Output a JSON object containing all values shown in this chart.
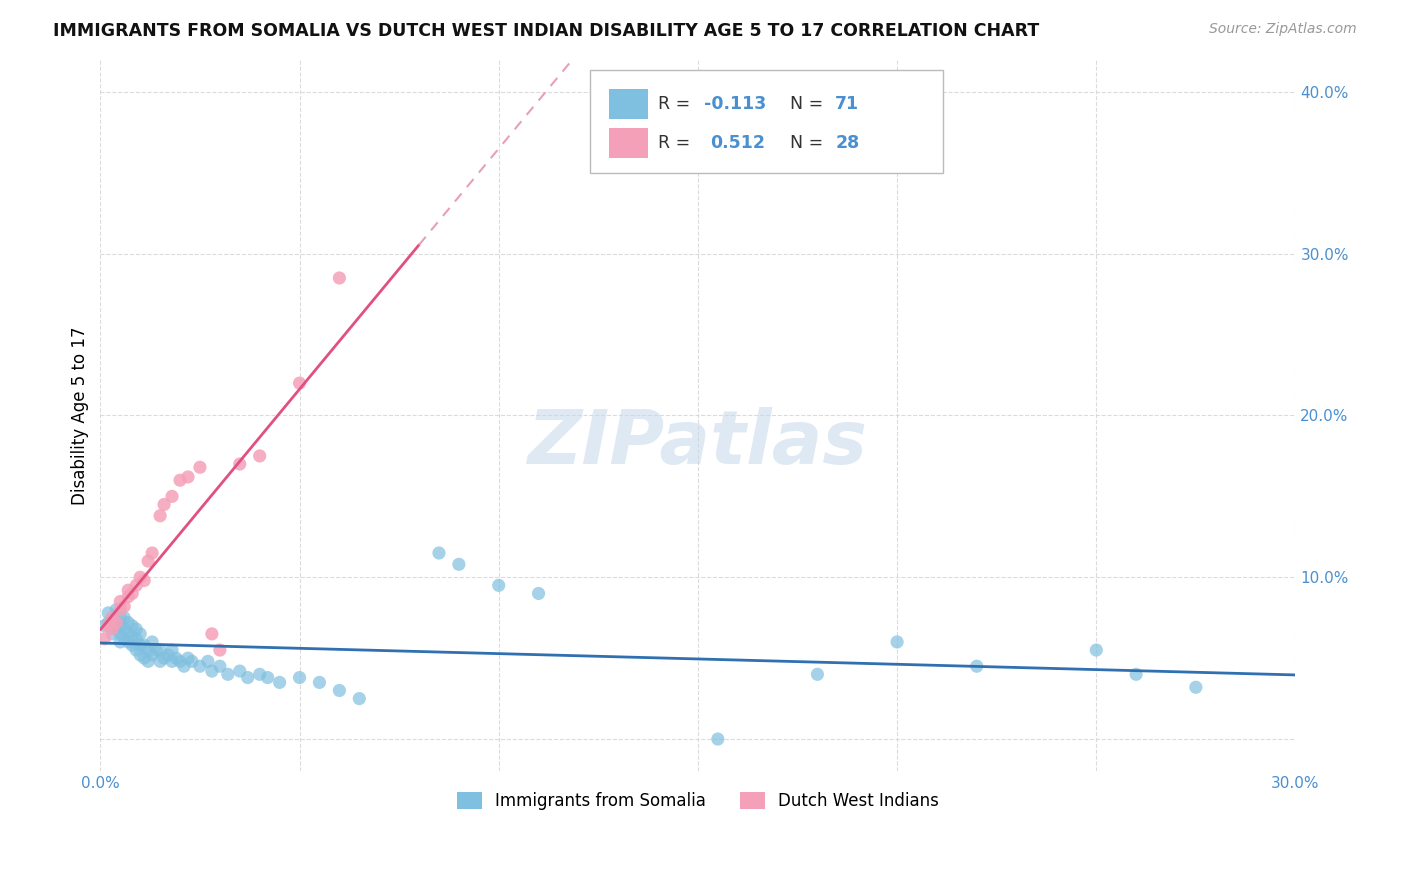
{
  "title": "IMMIGRANTS FROM SOMALIA VS DUTCH WEST INDIAN DISABILITY AGE 5 TO 17 CORRELATION CHART",
  "source": "Source: ZipAtlas.com",
  "ylabel": "Disability Age 5 to 17",
  "xlim": [
    0.0,
    0.3
  ],
  "ylim": [
    -0.02,
    0.42
  ],
  "blue_color": "#7fbfdf",
  "pink_color": "#f4a0b8",
  "trend_blue": "#3070b0",
  "trend_pink_solid": "#e05080",
  "trend_pink_dashed": "#e8a0b8",
  "background": "#ffffff",
  "grid_color": "#d8d8d8",
  "somalia_x": [
    0.001,
    0.002,
    0.002,
    0.003,
    0.003,
    0.003,
    0.004,
    0.004,
    0.004,
    0.005,
    0.005,
    0.005,
    0.005,
    0.006,
    0.006,
    0.006,
    0.007,
    0.007,
    0.007,
    0.008,
    0.008,
    0.008,
    0.009,
    0.009,
    0.009,
    0.01,
    0.01,
    0.01,
    0.011,
    0.011,
    0.012,
    0.012,
    0.013,
    0.013,
    0.014,
    0.015,
    0.015,
    0.016,
    0.017,
    0.018,
    0.018,
    0.019,
    0.02,
    0.021,
    0.022,
    0.023,
    0.025,
    0.027,
    0.028,
    0.03,
    0.032,
    0.035,
    0.037,
    0.04,
    0.042,
    0.045,
    0.05,
    0.055,
    0.06,
    0.065,
    0.085,
    0.09,
    0.1,
    0.11,
    0.155,
    0.18,
    0.2,
    0.22,
    0.25,
    0.26,
    0.275
  ],
  "somalia_y": [
    0.07,
    0.072,
    0.078,
    0.065,
    0.07,
    0.075,
    0.068,
    0.072,
    0.08,
    0.06,
    0.065,
    0.07,
    0.075,
    0.062,
    0.068,
    0.075,
    0.06,
    0.065,
    0.072,
    0.058,
    0.063,
    0.07,
    0.055,
    0.062,
    0.068,
    0.052,
    0.058,
    0.065,
    0.05,
    0.058,
    0.048,
    0.055,
    0.052,
    0.06,
    0.055,
    0.048,
    0.055,
    0.05,
    0.052,
    0.048,
    0.055,
    0.05,
    0.048,
    0.045,
    0.05,
    0.048,
    0.045,
    0.048,
    0.042,
    0.045,
    0.04,
    0.042,
    0.038,
    0.04,
    0.038,
    0.035,
    0.038,
    0.035,
    0.03,
    0.025,
    0.115,
    0.108,
    0.095,
    0.09,
    0.0,
    0.04,
    0.06,
    0.045,
    0.055,
    0.04,
    0.032
  ],
  "dutch_x": [
    0.001,
    0.002,
    0.003,
    0.003,
    0.004,
    0.005,
    0.005,
    0.006,
    0.007,
    0.007,
    0.008,
    0.009,
    0.01,
    0.011,
    0.012,
    0.013,
    0.015,
    0.016,
    0.018,
    0.02,
    0.022,
    0.025,
    0.028,
    0.03,
    0.035,
    0.04,
    0.05,
    0.06
  ],
  "dutch_y": [
    0.062,
    0.07,
    0.068,
    0.075,
    0.072,
    0.08,
    0.085,
    0.082,
    0.088,
    0.092,
    0.09,
    0.095,
    0.1,
    0.098,
    0.11,
    0.115,
    0.138,
    0.145,
    0.15,
    0.16,
    0.162,
    0.168,
    0.065,
    0.055,
    0.17,
    0.175,
    0.22,
    0.285
  ],
  "dutch_trend_end_x": 0.08,
  "blue_trend_start_y": 0.075,
  "blue_trend_end_y": 0.055
}
